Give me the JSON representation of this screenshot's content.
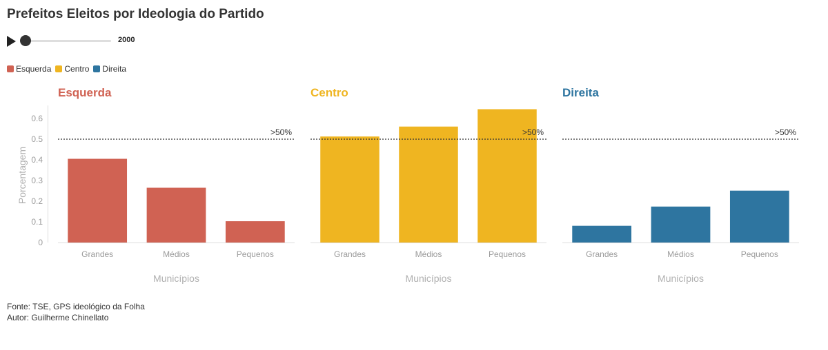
{
  "title": "Prefeitos Eleitos por Ideologia do Partido",
  "player": {
    "play_icon": "play-icon",
    "year": "2000",
    "progress": 0
  },
  "legend": [
    {
      "label": "Esquerda",
      "color": "#d06253"
    },
    {
      "label": "Centro",
      "color": "#efb521"
    },
    {
      "label": "Direita",
      "color": "#2e75a0"
    }
  ],
  "chart_data": [
    {
      "type": "bar",
      "title": "Esquerda",
      "color": "#d06253",
      "categories": [
        "Grandes",
        "Médios",
        "Pequenos"
      ],
      "values": [
        0.405,
        0.265,
        0.103
      ],
      "xlabel": "Municípios",
      "ylabel": "Porcentagem",
      "ylim": [
        0,
        0.65
      ],
      "yticks": [
        "0",
        "0.1",
        "0.2",
        "0.3",
        "0.4",
        "0.5",
        "0.6"
      ],
      "reference_line": {
        "value": 0.5,
        "label": ">50%"
      },
      "grid": false
    },
    {
      "type": "bar",
      "title": "Centro",
      "color": "#efb521",
      "categories": [
        "Grandes",
        "Médios",
        "Pequenos"
      ],
      "values": [
        0.513,
        0.561,
        0.645
      ],
      "xlabel": "Municípios",
      "ylabel": "",
      "ylim": [
        0,
        0.65
      ],
      "reference_line": {
        "value": 0.5,
        "label": ">50%"
      },
      "grid": false
    },
    {
      "type": "bar",
      "title": "Direita",
      "color": "#2e75a0",
      "categories": [
        "Grandes",
        "Médios",
        "Pequenos"
      ],
      "values": [
        0.081,
        0.174,
        0.251
      ],
      "xlabel": "Municípios",
      "ylabel": "",
      "ylim": [
        0,
        0.65
      ],
      "reference_line": {
        "value": 0.5,
        "label": ">50%"
      },
      "grid": false
    }
  ],
  "footer": {
    "source": "Fonte: TSE, GPS ideológico da Folha",
    "author": "Autor: Guilherme Chinellato"
  }
}
